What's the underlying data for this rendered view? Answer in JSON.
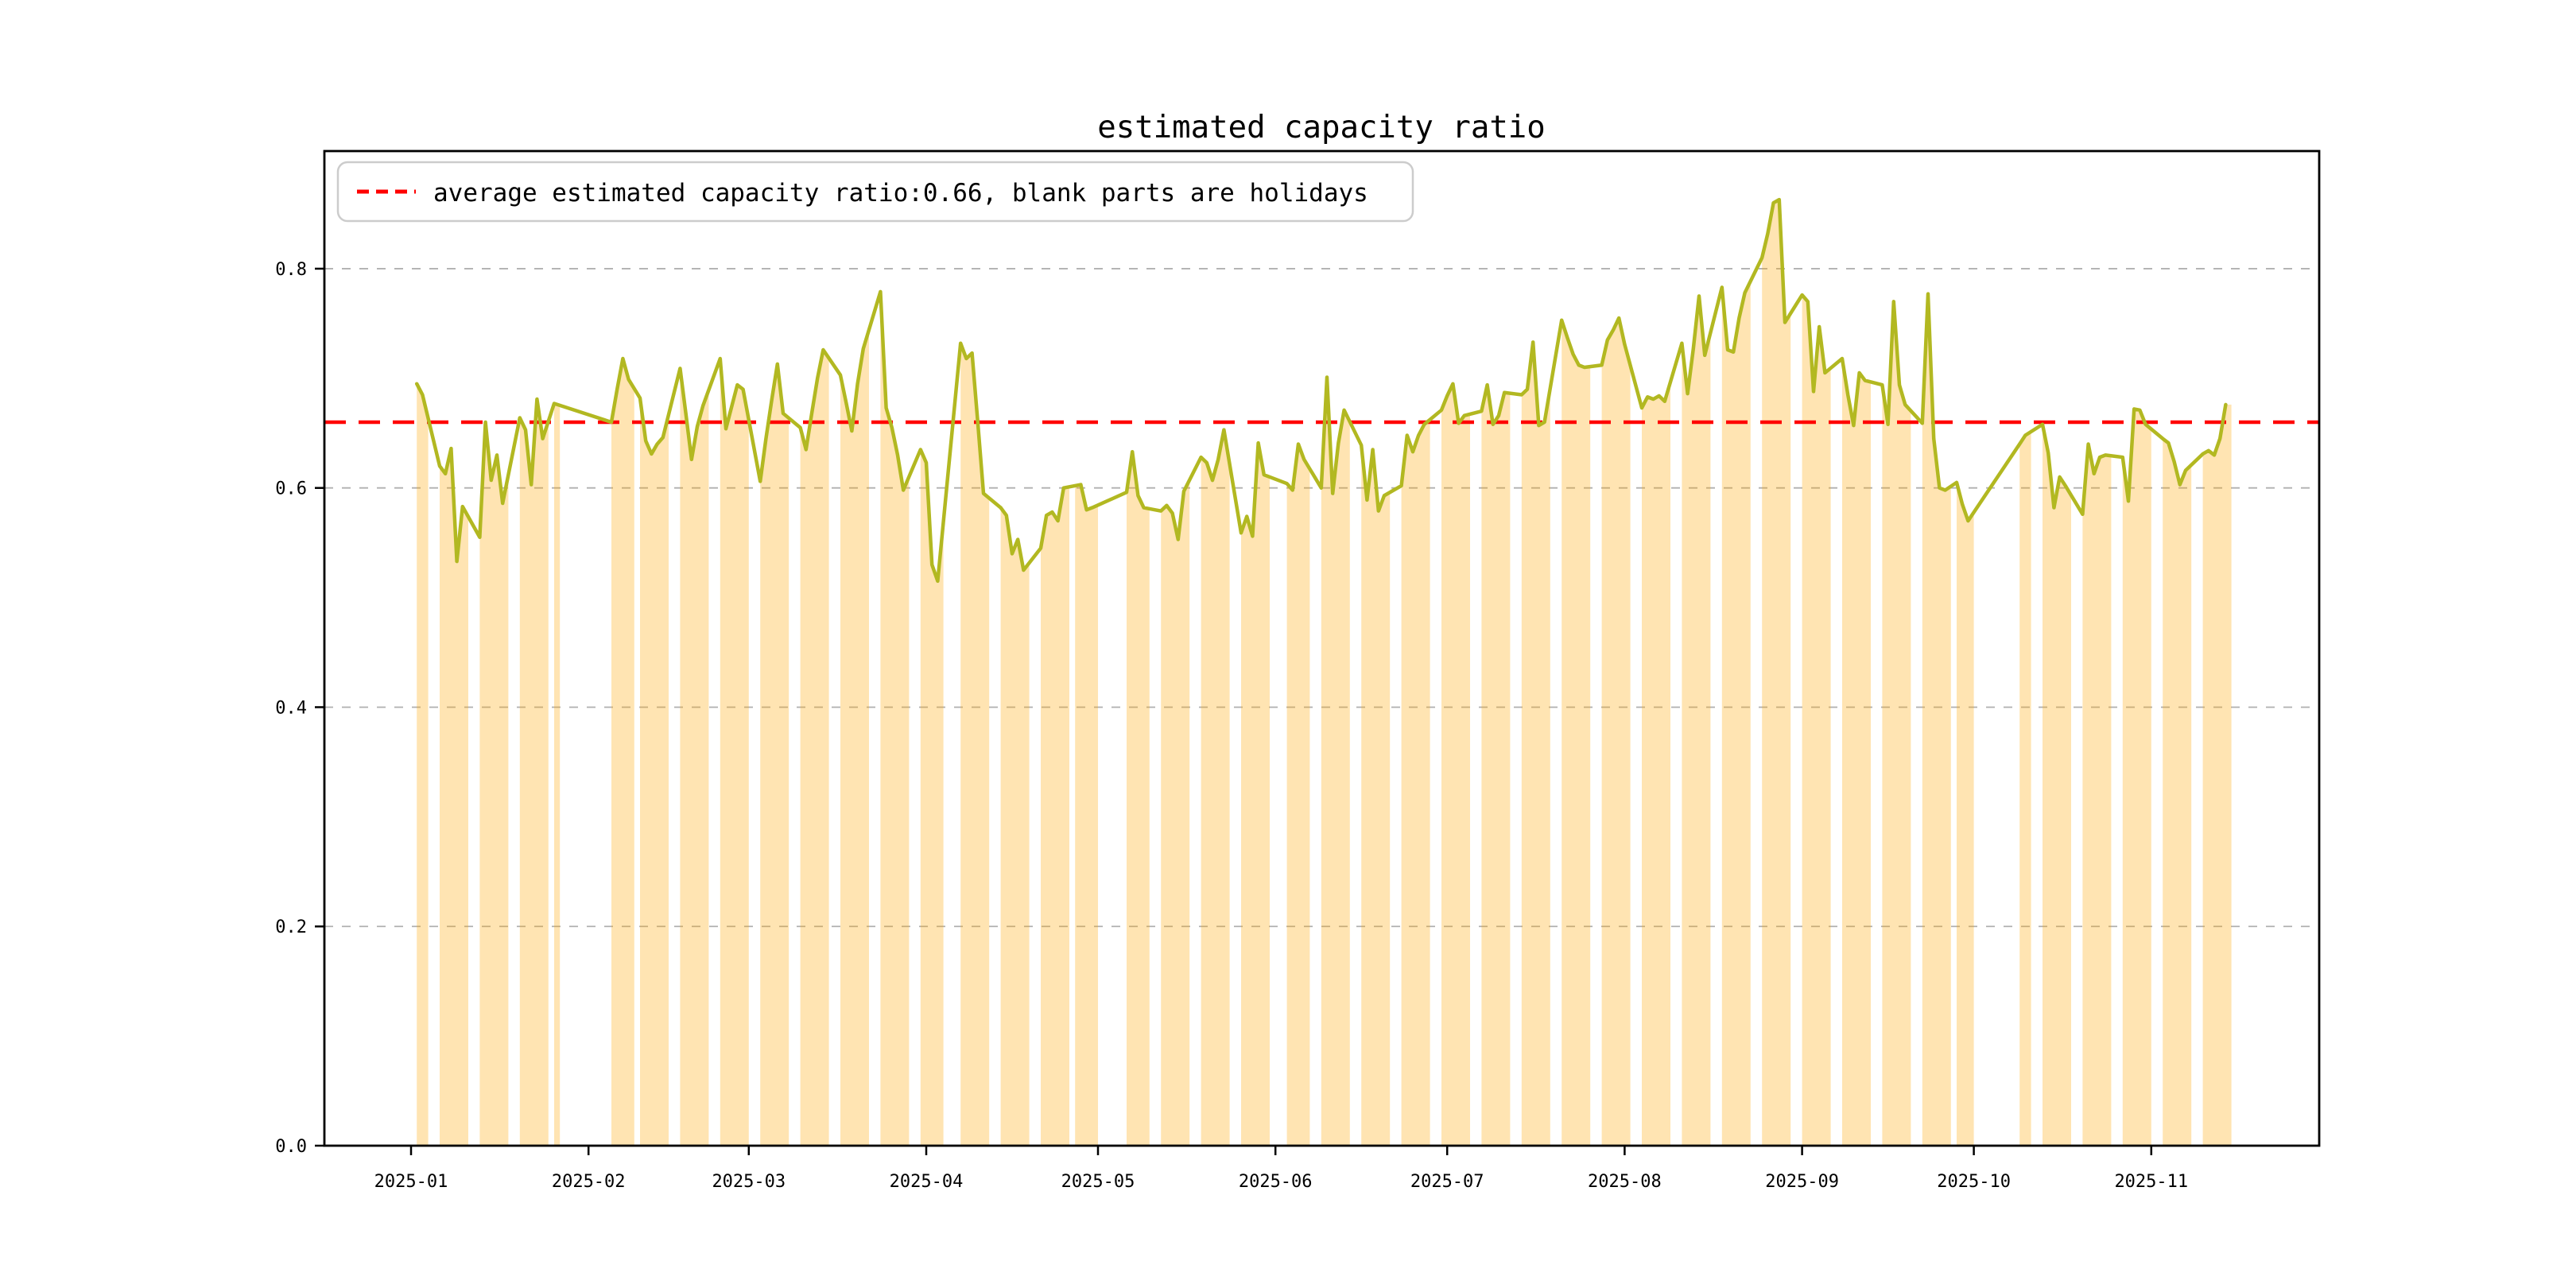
{
  "chart_data": {
    "type": "line",
    "title": "estimated capacity ratio",
    "legend": {
      "label": "average estimated capacity ratio:0.66, blank parts are holidays",
      "style": "dashed",
      "color": "#ff0000",
      "position": "upper left"
    },
    "average": 0.66,
    "year": "2025",
    "ylim": [
      0,
      0.9073
    ],
    "yticks": [
      0.0,
      0.2,
      0.4,
      0.6,
      0.8
    ],
    "ytick_labels": [
      "0.0",
      "0.2",
      "0.4",
      "0.6",
      "0.8"
    ],
    "grid": "dashed horizontal",
    "xticks": [
      {
        "label": "2025-01",
        "day": 0
      },
      {
        "label": "2025-02",
        "day": 31
      },
      {
        "label": "2025-03",
        "day": 59
      },
      {
        "label": "2025-04",
        "day": 90
      },
      {
        "label": "2025-05",
        "day": 120
      },
      {
        "label": "2025-06",
        "day": 151
      },
      {
        "label": "2025-07",
        "day": 181
      },
      {
        "label": "2025-08",
        "day": 212
      },
      {
        "label": "2025-09",
        "day": 243
      },
      {
        "label": "2025-10",
        "day": 273
      },
      {
        "label": "2025-11",
        "day": 304
      }
    ],
    "colors": {
      "line": "#b2b821",
      "workday_fill": "rgba(255,165,0,0.30)",
      "average_line": "#ff0000",
      "grid": "#b0b0b0",
      "spine": "#000000"
    },
    "series_note": "daily estimated capacity ratio on workdays; blank spans are weekend/holiday gaps",
    "series": [
      {
        "d": "01-02",
        "v": 0.695
      },
      {
        "d": "01-03",
        "v": 0.685
      },
      {
        "d": "01-06",
        "v": 0.62
      },
      {
        "d": "01-07",
        "v": 0.613
      },
      {
        "d": "01-08",
        "v": 0.636
      },
      {
        "d": "01-09",
        "v": 0.533
      },
      {
        "d": "01-10",
        "v": 0.583
      },
      {
        "d": "01-13",
        "v": 0.555
      },
      {
        "d": "01-14",
        "v": 0.66
      },
      {
        "d": "01-15",
        "v": 0.607
      },
      {
        "d": "01-16",
        "v": 0.63
      },
      {
        "d": "01-17",
        "v": 0.586
      },
      {
        "d": "01-20",
        "v": 0.664
      },
      {
        "d": "01-21",
        "v": 0.653
      },
      {
        "d": "01-22",
        "v": 0.603
      },
      {
        "d": "01-23",
        "v": 0.681
      },
      {
        "d": "01-24",
        "v": 0.645
      },
      {
        "d": "01-26",
        "v": 0.677
      },
      {
        "d": "02-05",
        "v": 0.66
      },
      {
        "d": "02-06",
        "v": 0.69
      },
      {
        "d": "02-07",
        "v": 0.718
      },
      {
        "d": "02-08",
        "v": 0.699
      },
      {
        "d": "02-10",
        "v": 0.682
      },
      {
        "d": "02-11",
        "v": 0.643
      },
      {
        "d": "02-12",
        "v": 0.631
      },
      {
        "d": "02-13",
        "v": 0.64
      },
      {
        "d": "02-14",
        "v": 0.646
      },
      {
        "d": "02-17",
        "v": 0.709
      },
      {
        "d": "02-18",
        "v": 0.668
      },
      {
        "d": "02-19",
        "v": 0.626
      },
      {
        "d": "02-20",
        "v": 0.656
      },
      {
        "d": "02-21",
        "v": 0.675
      },
      {
        "d": "02-24",
        "v": 0.718
      },
      {
        "d": "02-25",
        "v": 0.654
      },
      {
        "d": "02-26",
        "v": 0.674
      },
      {
        "d": "02-27",
        "v": 0.694
      },
      {
        "d": "02-28",
        "v": 0.69
      },
      {
        "d": "03-03",
        "v": 0.606
      },
      {
        "d": "03-04",
        "v": 0.645
      },
      {
        "d": "03-05",
        "v": 0.68
      },
      {
        "d": "03-06",
        "v": 0.713
      },
      {
        "d": "03-07",
        "v": 0.668
      },
      {
        "d": "03-10",
        "v": 0.655
      },
      {
        "d": "03-11",
        "v": 0.635
      },
      {
        "d": "03-12",
        "v": 0.668
      },
      {
        "d": "03-13",
        "v": 0.7
      },
      {
        "d": "03-14",
        "v": 0.726
      },
      {
        "d": "03-17",
        "v": 0.703
      },
      {
        "d": "03-18",
        "v": 0.678
      },
      {
        "d": "03-19",
        "v": 0.652
      },
      {
        "d": "03-20",
        "v": 0.695
      },
      {
        "d": "03-21",
        "v": 0.727
      },
      {
        "d": "03-24",
        "v": 0.779
      },
      {
        "d": "03-25",
        "v": 0.673
      },
      {
        "d": "03-26",
        "v": 0.655
      },
      {
        "d": "03-27",
        "v": 0.63
      },
      {
        "d": "03-28",
        "v": 0.598
      },
      {
        "d": "03-31",
        "v": 0.635
      },
      {
        "d": "04-01",
        "v": 0.623
      },
      {
        "d": "04-02",
        "v": 0.53
      },
      {
        "d": "04-03",
        "v": 0.515
      },
      {
        "d": "04-07",
        "v": 0.732
      },
      {
        "d": "04-08",
        "v": 0.718
      },
      {
        "d": "04-09",
        "v": 0.723
      },
      {
        "d": "04-10",
        "v": 0.66
      },
      {
        "d": "04-11",
        "v": 0.595
      },
      {
        "d": "04-14",
        "v": 0.582
      },
      {
        "d": "04-15",
        "v": 0.575
      },
      {
        "d": "04-16",
        "v": 0.54
      },
      {
        "d": "04-17",
        "v": 0.553
      },
      {
        "d": "04-18",
        "v": 0.525
      },
      {
        "d": "04-21",
        "v": 0.545
      },
      {
        "d": "04-22",
        "v": 0.575
      },
      {
        "d": "04-23",
        "v": 0.578
      },
      {
        "d": "04-24",
        "v": 0.57
      },
      {
        "d": "04-25",
        "v": 0.6
      },
      {
        "d": "04-27",
        "v": 0.602
      },
      {
        "d": "04-28",
        "v": 0.603
      },
      {
        "d": "04-29",
        "v": 0.58
      },
      {
        "d": "04-30",
        "v": 0.582
      },
      {
        "d": "05-06",
        "v": 0.596
      },
      {
        "d": "05-07",
        "v": 0.633
      },
      {
        "d": "05-08",
        "v": 0.593
      },
      {
        "d": "05-09",
        "v": 0.582
      },
      {
        "d": "05-12",
        "v": 0.579
      },
      {
        "d": "05-13",
        "v": 0.584
      },
      {
        "d": "05-14",
        "v": 0.577
      },
      {
        "d": "05-15",
        "v": 0.553
      },
      {
        "d": "05-16",
        "v": 0.597
      },
      {
        "d": "05-19",
        "v": 0.628
      },
      {
        "d": "05-20",
        "v": 0.623
      },
      {
        "d": "05-21",
        "v": 0.607
      },
      {
        "d": "05-22",
        "v": 0.626
      },
      {
        "d": "05-23",
        "v": 0.653
      },
      {
        "d": "05-26",
        "v": 0.559
      },
      {
        "d": "05-27",
        "v": 0.574
      },
      {
        "d": "05-28",
        "v": 0.556
      },
      {
        "d": "05-29",
        "v": 0.641
      },
      {
        "d": "05-30",
        "v": 0.612
      },
      {
        "d": "06-03",
        "v": 0.604
      },
      {
        "d": "06-04",
        "v": 0.598
      },
      {
        "d": "06-05",
        "v": 0.64
      },
      {
        "d": "06-06",
        "v": 0.626
      },
      {
        "d": "06-09",
        "v": 0.6
      },
      {
        "d": "06-10",
        "v": 0.701
      },
      {
        "d": "06-11",
        "v": 0.595
      },
      {
        "d": "06-12",
        "v": 0.641
      },
      {
        "d": "06-13",
        "v": 0.671
      },
      {
        "d": "06-16",
        "v": 0.639
      },
      {
        "d": "06-17",
        "v": 0.589
      },
      {
        "d": "06-18",
        "v": 0.635
      },
      {
        "d": "06-19",
        "v": 0.579
      },
      {
        "d": "06-20",
        "v": 0.593
      },
      {
        "d": "06-23",
        "v": 0.602
      },
      {
        "d": "06-24",
        "v": 0.648
      },
      {
        "d": "06-25",
        "v": 0.633
      },
      {
        "d": "06-26",
        "v": 0.648
      },
      {
        "d": "06-27",
        "v": 0.658
      },
      {
        "d": "06-30",
        "v": 0.671
      },
      {
        "d": "07-01",
        "v": 0.684
      },
      {
        "d": "07-02",
        "v": 0.695
      },
      {
        "d": "07-03",
        "v": 0.659
      },
      {
        "d": "07-04",
        "v": 0.666
      },
      {
        "d": "07-07",
        "v": 0.67
      },
      {
        "d": "07-08",
        "v": 0.694
      },
      {
        "d": "07-09",
        "v": 0.658
      },
      {
        "d": "07-10",
        "v": 0.666
      },
      {
        "d": "07-11",
        "v": 0.687
      },
      {
        "d": "07-14",
        "v": 0.685
      },
      {
        "d": "07-15",
        "v": 0.69
      },
      {
        "d": "07-16",
        "v": 0.733
      },
      {
        "d": "07-17",
        "v": 0.657
      },
      {
        "d": "07-18",
        "v": 0.66
      },
      {
        "d": "07-21",
        "v": 0.753
      },
      {
        "d": "07-22",
        "v": 0.737
      },
      {
        "d": "07-23",
        "v": 0.722
      },
      {
        "d": "07-24",
        "v": 0.712
      },
      {
        "d": "07-25",
        "v": 0.71
      },
      {
        "d": "07-28",
        "v": 0.712
      },
      {
        "d": "07-29",
        "v": 0.735
      },
      {
        "d": "07-30",
        "v": 0.744
      },
      {
        "d": "07-31",
        "v": 0.755
      },
      {
        "d": "08-01",
        "v": 0.731
      },
      {
        "d": "08-04",
        "v": 0.673
      },
      {
        "d": "08-05",
        "v": 0.683
      },
      {
        "d": "08-06",
        "v": 0.681
      },
      {
        "d": "08-07",
        "v": 0.684
      },
      {
        "d": "08-08",
        "v": 0.679
      },
      {
        "d": "08-11",
        "v": 0.732
      },
      {
        "d": "08-12",
        "v": 0.686
      },
      {
        "d": "08-13",
        "v": 0.727
      },
      {
        "d": "08-14",
        "v": 0.775
      },
      {
        "d": "08-15",
        "v": 0.721
      },
      {
        "d": "08-18",
        "v": 0.783
      },
      {
        "d": "08-19",
        "v": 0.726
      },
      {
        "d": "08-20",
        "v": 0.724
      },
      {
        "d": "08-21",
        "v": 0.755
      },
      {
        "d": "08-22",
        "v": 0.778
      },
      {
        "d": "08-25",
        "v": 0.81
      },
      {
        "d": "08-26",
        "v": 0.832
      },
      {
        "d": "08-27",
        "v": 0.86
      },
      {
        "d": "08-28",
        "v": 0.863
      },
      {
        "d": "08-29",
        "v": 0.751
      },
      {
        "d": "09-01",
        "v": 0.776
      },
      {
        "d": "09-02",
        "v": 0.77
      },
      {
        "d": "09-03",
        "v": 0.688
      },
      {
        "d": "09-04",
        "v": 0.747
      },
      {
        "d": "09-05",
        "v": 0.705
      },
      {
        "d": "09-08",
        "v": 0.718
      },
      {
        "d": "09-09",
        "v": 0.685
      },
      {
        "d": "09-10",
        "v": 0.657
      },
      {
        "d": "09-11",
        "v": 0.705
      },
      {
        "d": "09-12",
        "v": 0.698
      },
      {
        "d": "09-15",
        "v": 0.694
      },
      {
        "d": "09-16",
        "v": 0.658
      },
      {
        "d": "09-17",
        "v": 0.77
      },
      {
        "d": "09-18",
        "v": 0.694
      },
      {
        "d": "09-19",
        "v": 0.676
      },
      {
        "d": "09-22",
        "v": 0.659
      },
      {
        "d": "09-23",
        "v": 0.777
      },
      {
        "d": "09-24",
        "v": 0.645
      },
      {
        "d": "09-25",
        "v": 0.6
      },
      {
        "d": "09-26",
        "v": 0.598
      },
      {
        "d": "09-28",
        "v": 0.605
      },
      {
        "d": "09-29",
        "v": 0.585
      },
      {
        "d": "09-30",
        "v": 0.57
      },
      {
        "d": "10-09",
        "v": 0.64
      },
      {
        "d": "10-10",
        "v": 0.648
      },
      {
        "d": "10-13",
        "v": 0.658
      },
      {
        "d": "10-14",
        "v": 0.632
      },
      {
        "d": "10-15",
        "v": 0.582
      },
      {
        "d": "10-16",
        "v": 0.61
      },
      {
        "d": "10-17",
        "v": 0.602
      },
      {
        "d": "10-20",
        "v": 0.576
      },
      {
        "d": "10-21",
        "v": 0.64
      },
      {
        "d": "10-22",
        "v": 0.613
      },
      {
        "d": "10-23",
        "v": 0.628
      },
      {
        "d": "10-24",
        "v": 0.63
      },
      {
        "d": "10-27",
        "v": 0.628
      },
      {
        "d": "10-28",
        "v": 0.588
      },
      {
        "d": "10-29",
        "v": 0.672
      },
      {
        "d": "10-30",
        "v": 0.671
      },
      {
        "d": "10-31",
        "v": 0.658
      },
      {
        "d": "11-03",
        "v": 0.645
      },
      {
        "d": "11-04",
        "v": 0.641
      },
      {
        "d": "11-05",
        "v": 0.624
      },
      {
        "d": "11-06",
        "v": 0.603
      },
      {
        "d": "11-07",
        "v": 0.616
      },
      {
        "d": "11-10",
        "v": 0.631
      },
      {
        "d": "11-11",
        "v": 0.634
      },
      {
        "d": "11-12",
        "v": 0.63
      },
      {
        "d": "11-13",
        "v": 0.645
      },
      {
        "d": "11-14",
        "v": 0.676
      }
    ]
  }
}
